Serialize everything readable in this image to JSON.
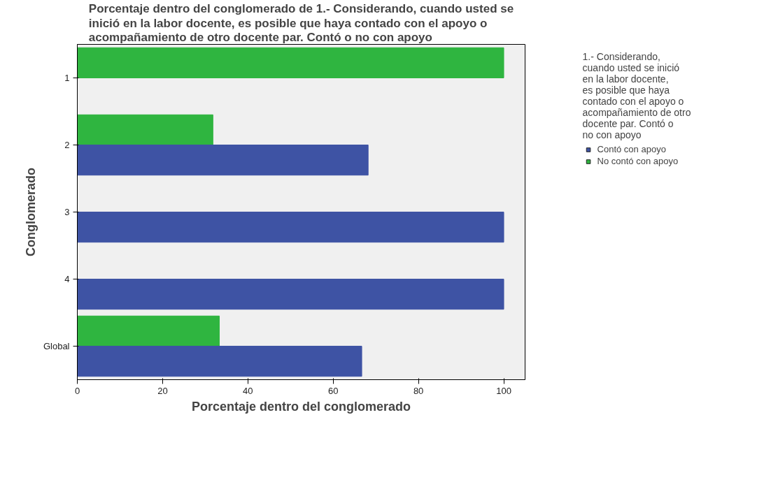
{
  "chart_data": {
    "type": "bar",
    "orientation": "horizontal",
    "title": "Porcentaje dentro del conglomerado de 1.- Considerando, cuando usted se inició en la labor docente, es posible que haya contado con el apoyo o acompañamiento de otro docente par. Contó o no con apoyo",
    "xlabel": "Porcentaje dentro del conglomerado",
    "ylabel": "Conglomerado",
    "legend_title": "1.- Considerando, cuando usted se inició en la labor docente, es posible que haya contado con el apoyo o acompañamiento de otro docente par. Contó o no con apoyo",
    "categories": [
      "1",
      "2",
      "3",
      "4",
      "Global"
    ],
    "series": [
      {
        "name": "No contó con apoyo",
        "color": "#2fb540",
        "values": [
          100,
          31.8,
          0,
          0,
          33.3
        ]
      },
      {
        "name": "Contó con apoyo",
        "color": "#3e53a4",
        "values": [
          0,
          68.2,
          100,
          100,
          66.7
        ]
      }
    ],
    "xlim": [
      0,
      105
    ],
    "xticks": [
      0,
      20,
      40,
      60,
      80,
      100
    ],
    "grid": false,
    "legend": "right"
  }
}
